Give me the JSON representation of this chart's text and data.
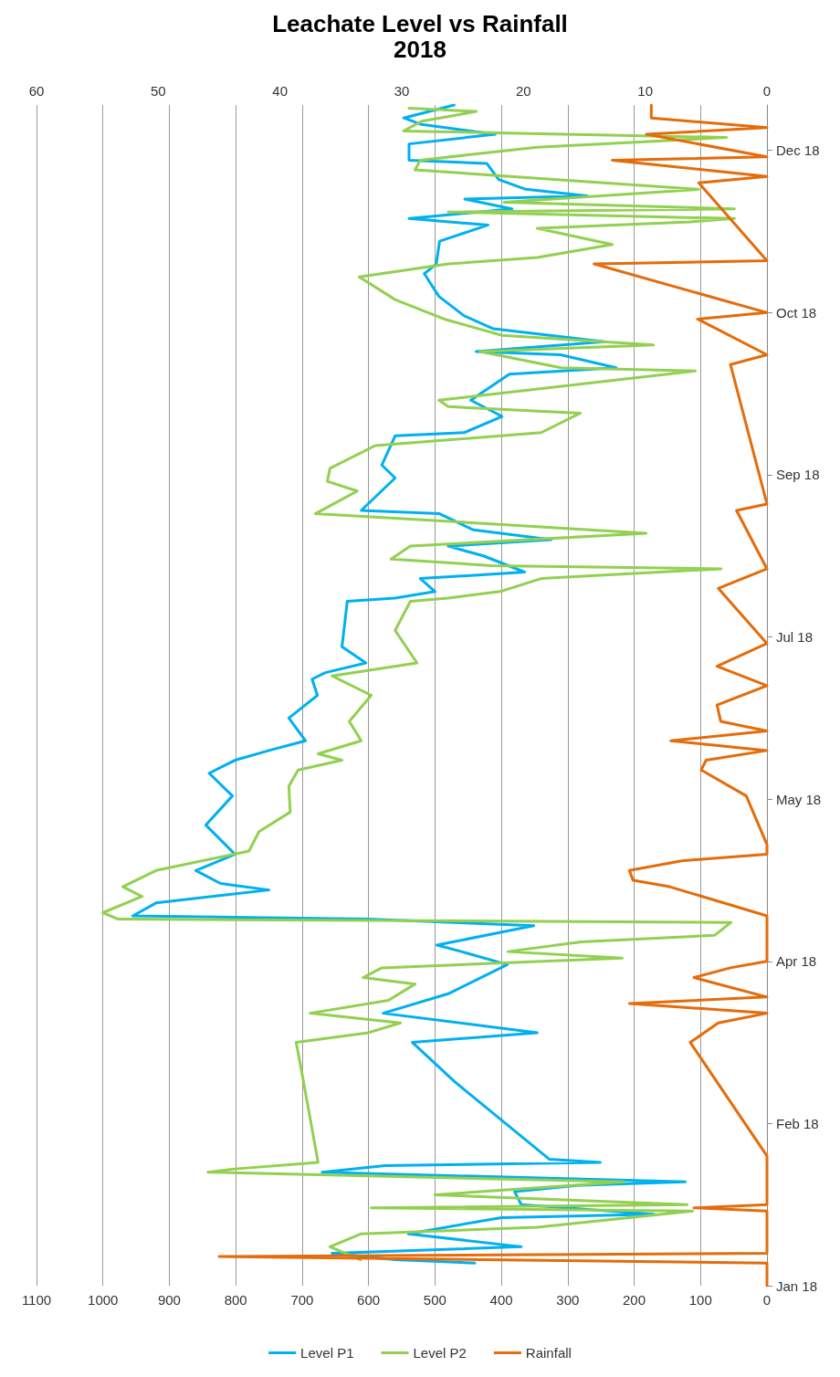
{
  "chart_data": {
    "type": "line",
    "title": "Leachate Level vs Rainfall",
    "subtitle": "2018",
    "orientation": "horizontal",
    "ylim": [
      "2018-01-01",
      "2018-12-31"
    ],
    "yticks": [
      {
        "value": "2018-01-01",
        "label": "Jan 18"
      },
      {
        "value": "2018-02-20",
        "label": "Feb 18"
      },
      {
        "value": "2018-04-11",
        "label": "Apr 18"
      },
      {
        "value": "2018-05-31",
        "label": "May 18"
      },
      {
        "value": "2018-07-20",
        "label": "Jul 18"
      },
      {
        "value": "2018-09-08",
        "label": "Sep 18"
      },
      {
        "value": "2018-10-28",
        "label": "Oct 18"
      },
      {
        "value": "2018-12-17",
        "label": "Dec 18"
      }
    ],
    "xlim": [
      1100,
      0
    ],
    "xticks": [
      1100,
      1000,
      900,
      800,
      700,
      600,
      500,
      400,
      300,
      200,
      100,
      0
    ],
    "x2lim": [
      60,
      0
    ],
    "x2ticks": [
      60,
      50,
      40,
      30,
      20,
      10,
      0
    ],
    "grid": "x",
    "legend": "bottom",
    "marker": "none",
    "line_style": "solid",
    "series": [
      {
        "name": "Level P1",
        "color": "#00b0f0",
        "x": [
          "2018-01-08",
          "2018-01-09",
          "2018-01-11",
          "2018-01-13",
          "2018-01-17",
          "2018-01-22",
          "2018-01-23",
          "2018-01-26",
          "2018-01-30",
          "2018-02-01",
          "2018-02-02",
          "2018-02-05",
          "2018-02-07",
          "2018-02-08",
          "2018-02-09",
          "2018-03-05",
          "2018-03-17",
          "2018-03-20",
          "2018-03-26",
          "2018-04-01",
          "2018-04-10",
          "2018-04-14",
          "2018-04-16",
          "2018-04-22",
          "2018-04-24",
          "2018-04-25",
          "2018-04-29",
          "2018-05-03",
          "2018-05-05",
          "2018-05-09",
          "2018-05-14",
          "2018-05-23",
          "2018-06-01",
          "2018-06-08",
          "2018-06-12",
          "2018-06-15",
          "2018-06-18",
          "2018-06-25",
          "2018-07-02",
          "2018-07-07",
          "2018-07-09",
          "2018-07-12",
          "2018-07-17",
          "2018-07-31",
          "2018-08-01",
          "2018-08-03",
          "2018-08-07",
          "2018-08-09",
          "2018-08-14",
          "2018-08-17",
          "2018-08-19",
          "2018-08-22",
          "2018-08-27",
          "2018-08-28",
          "2018-09-07",
          "2018-09-11",
          "2018-09-20",
          "2018-09-21",
          "2018-09-26",
          "2018-10-01",
          "2018-10-09",
          "2018-10-11",
          "2018-10-15",
          "2018-10-16",
          "2018-10-19",
          "2018-10-23",
          "2018-10-27",
          "2018-11-02",
          "2018-11-09",
          "2018-11-12",
          "2018-11-19",
          "2018-11-24",
          "2018-11-26",
          "2018-11-29",
          "2018-12-02",
          "2018-12-03",
          "2018-12-05",
          "2018-12-08",
          "2018-12-13",
          "2018-12-14",
          "2018-12-19",
          "2018-12-22",
          "2018-12-25",
          "2018-12-27",
          "2018-12-31"
        ],
        "values": [
          440,
          560,
          655,
          370,
          540,
          400,
          170,
          370,
          380,
          280,
          123,
          670,
          575,
          251,
          328,
          471,
          534,
          346,
          578,
          480,
          391,
          460,
          497,
          351,
          600,
          955,
          920,
          750,
          823,
          860,
          801,
          845,
          805,
          840,
          801,
          750,
          695,
          720,
          677,
          685,
          665,
          604,
          640,
          632,
          560,
          500,
          522,
          365,
          427,
          480,
          325,
          442,
          493,
          611,
          560,
          580,
          560,
          456,
          399,
          446,
          388,
          227,
          311,
          438,
          245,
          412,
          456,
          494,
          516,
          498,
          493,
          420,
          539,
          384,
          455,
          271,
          363,
          404,
          422,
          539,
          539,
          409,
          520,
          547,
          471
        ]
      },
      {
        "name": "Level P2",
        "color": "#92d050",
        "x": [
          "2018-01-09",
          "2018-01-13",
          "2018-01-17",
          "2018-01-19",
          "2018-01-24",
          "2018-01-25",
          "2018-01-26",
          "2018-01-29",
          "2018-02-02",
          "2018-02-05",
          "2018-02-06",
          "2018-02-08",
          "2018-03-05",
          "2018-03-17",
          "2018-03-20",
          "2018-03-23",
          "2018-03-26",
          "2018-03-30",
          "2018-04-04",
          "2018-04-06",
          "2018-04-09",
          "2018-04-12",
          "2018-04-14",
          "2018-04-17",
          "2018-04-19",
          "2018-04-23",
          "2018-04-24",
          "2018-04-26",
          "2018-05-01",
          "2018-05-04",
          "2018-05-09",
          "2018-05-15",
          "2018-05-21",
          "2018-05-27",
          "2018-06-04",
          "2018-06-09",
          "2018-06-12",
          "2018-06-14",
          "2018-06-18",
          "2018-06-24",
          "2018-07-02",
          "2018-07-08",
          "2018-07-12",
          "2018-07-22",
          "2018-07-31",
          "2018-08-01",
          "2018-08-03",
          "2018-08-07",
          "2018-08-10",
          "2018-08-11",
          "2018-08-13",
          "2018-08-17",
          "2018-08-21",
          "2018-08-24",
          "2018-08-27",
          "2018-09-03",
          "2018-09-06",
          "2018-09-10",
          "2018-09-17",
          "2018-09-21",
          "2018-09-27",
          "2018-09-29",
          "2018-10-01",
          "2018-10-10",
          "2018-10-11",
          "2018-10-16",
          "2018-10-18",
          "2018-10-21",
          "2018-10-26",
          "2018-11-01",
          "2018-11-08",
          "2018-11-12",
          "2018-11-14",
          "2018-11-18",
          "2018-11-23",
          "2018-11-25",
          "2018-11-26",
          "2018-11-28",
          "2018-11-29",
          "2018-12-01",
          "2018-12-05",
          "2018-12-11",
          "2018-12-14",
          "2018-12-18",
          "2018-12-21",
          "2018-12-23",
          "2018-12-26",
          "2018-12-29",
          "2018-12-30"
        ],
        "values": [
          612,
          658,
          611,
          346,
          112,
          596,
          120,
          500,
          215,
          842,
          801,
          676,
          698,
          709,
          600,
          552,
          688,
          570,
          530,
          608,
          580,
          218,
          390,
          280,
          79,
          54,
          977,
          1000,
          941,
          970,
          920,
          780,
          765,
          718,
          720,
          706,
          640,
          676,
          611,
          629,
          596,
          655,
          527,
          560,
          537,
          480,
          402,
          340,
          69,
          415,
          566,
          537,
          182,
          427,
          680,
          617,
          662,
          658,
          590,
          340,
          281,
          480,
          494,
          108,
          310,
          432,
          171,
          399,
          486,
          560,
          614,
          480,
          346,
          233,
          346,
          115,
          49,
          480,
          49,
          396,
          103,
          530,
          522,
          346,
          61,
          547,
          520,
          438,
          539
        ]
      },
      {
        "name": "Rainfall",
        "color": "#e46c0a",
        "axis": "x2",
        "x": [
          "2018-01-01",
          "2018-01-08",
          "2018-01-10",
          "2018-01-11",
          "2018-01-24",
          "2018-01-25",
          "2018-01-26",
          "2018-02-10",
          "2018-03-17",
          "2018-03-23",
          "2018-03-26",
          "2018-03-29",
          "2018-03-31",
          "2018-04-06",
          "2018-04-09",
          "2018-04-11",
          "2018-04-25",
          "2018-05-04",
          "2018-05-06",
          "2018-05-09",
          "2018-05-12",
          "2018-05-14",
          "2018-05-17",
          "2018-06-01",
          "2018-06-09",
          "2018-06-12",
          "2018-06-15",
          "2018-06-18",
          "2018-06-21",
          "2018-06-24",
          "2018-06-29",
          "2018-07-05",
          "2018-07-11",
          "2018-07-18",
          "2018-08-04",
          "2018-08-10",
          "2018-08-28",
          "2018-08-30",
          "2018-10-12",
          "2018-10-15",
          "2018-10-26",
          "2018-10-28",
          "2018-11-12",
          "2018-11-13",
          "2018-12-07",
          "2018-12-09",
          "2018-12-14",
          "2018-12-15",
          "2018-12-22",
          "2018-12-24",
          "2018-12-27",
          "2018-12-31"
        ],
        "values": [
          0,
          0,
          45,
          0,
          0,
          6,
          0,
          0,
          6.3,
          4,
          0,
          11.3,
          0,
          6,
          3,
          0,
          0,
          8,
          11,
          11.3,
          7,
          0,
          0,
          1.7,
          5.4,
          5,
          0,
          7.9,
          0,
          3.8,
          4.1,
          0,
          4.1,
          0,
          4,
          0,
          2.5,
          0,
          3,
          0,
          5.7,
          0,
          14.2,
          0,
          5.6,
          0,
          12.7,
          0,
          9.9,
          0,
          9.5,
          9.5
        ]
      }
    ]
  }
}
